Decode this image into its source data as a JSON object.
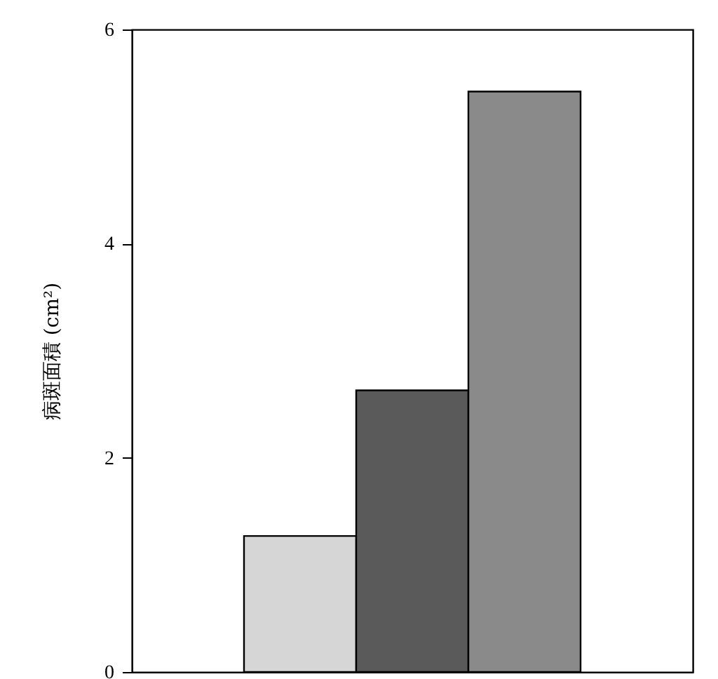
{
  "chart_data": {
    "type": "bar",
    "ylabel": "病斑面積 (cm²)",
    "categories": [
      null,
      null,
      null
    ],
    "values": [
      1.27,
      2.63,
      5.42
    ],
    "colors": [
      "#d6d6d6",
      "#5a5a5a",
      "#8a8a8a"
    ],
    "ylim": [
      0,
      6
    ],
    "yticks": [
      0,
      2,
      4,
      6
    ],
    "tick_labels": "y",
    "grid": false
  }
}
